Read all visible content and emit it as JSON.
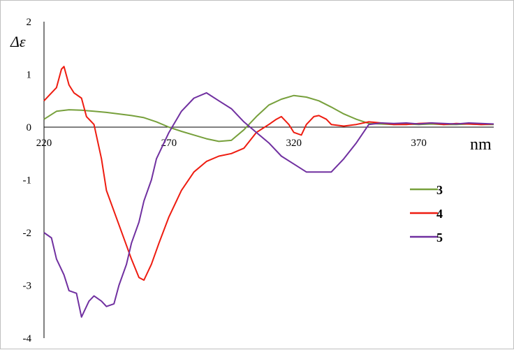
{
  "chart_data": {
    "type": "line",
    "title": "",
    "xlabel": "nm",
    "ylabel": "Δε",
    "xlim": [
      220,
      400
    ],
    "ylim": [
      -4,
      2
    ],
    "x_ticks": [
      220,
      270,
      320,
      370
    ],
    "x_tick_labels": [
      "220",
      "270",
      "320",
      "370"
    ],
    "y_ticks": [
      2,
      1,
      0,
      -1,
      -2,
      -3,
      -4
    ],
    "y_tick_labels": [
      "2",
      "1",
      "0",
      "-1",
      "-2",
      "-3",
      "-4"
    ],
    "grid": false,
    "legend_position": "right",
    "series": [
      {
        "name": "3",
        "color": "#77a03c",
        "x": [
          220,
          225,
          230,
          235,
          240,
          245,
          250,
          255,
          260,
          265,
          270,
          275,
          280,
          285,
          290,
          295,
          300,
          305,
          310,
          315,
          320,
          325,
          330,
          335,
          340,
          345,
          350,
          355,
          360,
          365,
          370,
          375,
          380,
          385,
          390,
          395,
          400
        ],
        "values": [
          0.15,
          0.3,
          0.33,
          0.32,
          0.3,
          0.28,
          0.25,
          0.22,
          0.18,
          0.1,
          0.0,
          -0.08,
          -0.15,
          -0.22,
          -0.27,
          -0.25,
          -0.05,
          0.2,
          0.42,
          0.53,
          0.6,
          0.57,
          0.5,
          0.38,
          0.25,
          0.15,
          0.07,
          0.06,
          0.05,
          0.06,
          0.05,
          0.06,
          0.05,
          0.05,
          0.06,
          0.05,
          0.05
        ]
      },
      {
        "name": "4",
        "color": "#ee1c10",
        "x": [
          220,
          222,
          225,
          227,
          228,
          230,
          232,
          235,
          237,
          240,
          243,
          245,
          250,
          255,
          258,
          260,
          263,
          266,
          270,
          275,
          280,
          285,
          290,
          295,
          300,
          305,
          310,
          313,
          315,
          318,
          320,
          323,
          325,
          328,
          330,
          333,
          335,
          340,
          345,
          350,
          355,
          360,
          365,
          370,
          375,
          380,
          385,
          390,
          395,
          400
        ],
        "values": [
          0.5,
          0.6,
          0.75,
          1.1,
          1.15,
          0.8,
          0.65,
          0.55,
          0.2,
          0.05,
          -0.6,
          -1.2,
          -1.85,
          -2.5,
          -2.85,
          -2.9,
          -2.6,
          -2.2,
          -1.7,
          -1.2,
          -0.85,
          -0.65,
          -0.55,
          -0.5,
          -0.4,
          -0.1,
          0.05,
          0.15,
          0.2,
          0.05,
          -0.1,
          -0.15,
          0.05,
          0.2,
          0.22,
          0.15,
          0.05,
          0.02,
          0.05,
          0.1,
          0.08,
          0.05,
          0.05,
          0.07,
          0.08,
          0.05,
          0.07,
          0.06,
          0.05,
          0.06
        ]
      },
      {
        "name": "5",
        "color": "#7030a0",
        "x": [
          220,
          223,
          225,
          228,
          230,
          233,
          235,
          238,
          240,
          243,
          245,
          248,
          250,
          253,
          255,
          258,
          260,
          263,
          265,
          270,
          275,
          280,
          285,
          290,
          295,
          300,
          305,
          310,
          315,
          320,
          325,
          330,
          335,
          340,
          345,
          350,
          355,
          360,
          365,
          370,
          375,
          380,
          385,
          390,
          395,
          400
        ],
        "values": [
          -2.0,
          -2.1,
          -2.5,
          -2.8,
          -3.1,
          -3.15,
          -3.6,
          -3.3,
          -3.2,
          -3.3,
          -3.4,
          -3.35,
          -3.0,
          -2.6,
          -2.2,
          -1.8,
          -1.4,
          -1.0,
          -0.6,
          -0.1,
          0.3,
          0.55,
          0.65,
          0.5,
          0.35,
          0.1,
          -0.1,
          -0.3,
          -0.55,
          -0.7,
          -0.85,
          -0.85,
          -0.85,
          -0.6,
          -0.3,
          0.05,
          0.08,
          0.07,
          0.08,
          0.06,
          0.08,
          0.07,
          0.06,
          0.08,
          0.07,
          0.06
        ]
      }
    ]
  }
}
